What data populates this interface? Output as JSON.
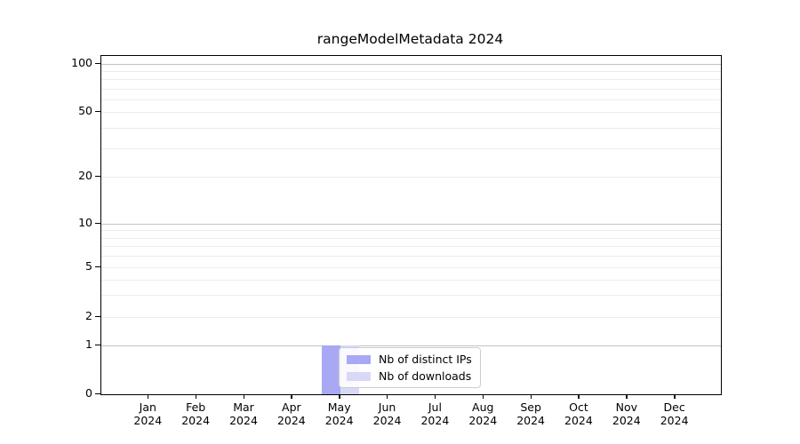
{
  "chart_data": {
    "type": "bar",
    "title": "rangeModelMetadata 2024",
    "x_tick_months": [
      "Jan",
      "Feb",
      "Mar",
      "Apr",
      "May",
      "Jun",
      "Jul",
      "Aug",
      "Sep",
      "Oct",
      "Nov",
      "Dec"
    ],
    "x_tick_year": "2024",
    "categories": [
      "Jan 2024",
      "Feb 2024",
      "Mar 2024",
      "Apr 2024",
      "May 2024",
      "Jun 2024",
      "Jul 2024",
      "Aug 2024",
      "Sep 2024",
      "Oct 2024",
      "Nov 2024",
      "Dec 2024"
    ],
    "y_ticks": [
      {
        "label": "0",
        "value": 0
      },
      {
        "label": "1",
        "value": 1
      },
      {
        "label": "2",
        "value": 2
      },
      {
        "label": "5",
        "value": 5
      },
      {
        "label": "10",
        "value": 10
      },
      {
        "label": "20",
        "value": 20
      },
      {
        "label": "50",
        "value": 50
      },
      {
        "label": "100",
        "value": 100
      }
    ],
    "series": [
      {
        "name": "Nb of distinct IPs",
        "color": "#a8a8f4",
        "values": [
          0,
          0,
          0,
          0,
          1,
          0,
          0,
          0,
          0,
          0,
          0,
          0
        ]
      },
      {
        "name": "Nb of downloads",
        "color": "#d8d8f8",
        "values": [
          0,
          0,
          0,
          0,
          1,
          0,
          0,
          0,
          0,
          0,
          0,
          0
        ]
      }
    ],
    "yscale": "symlog",
    "grid": "major+minor horizontal",
    "legend_position": "inside-bottom-left-of-center",
    "colors": {
      "major_grid": "#c3c3c3",
      "minor_grid": "#ececec",
      "spine": "#000000",
      "background": "#ffffff"
    }
  }
}
